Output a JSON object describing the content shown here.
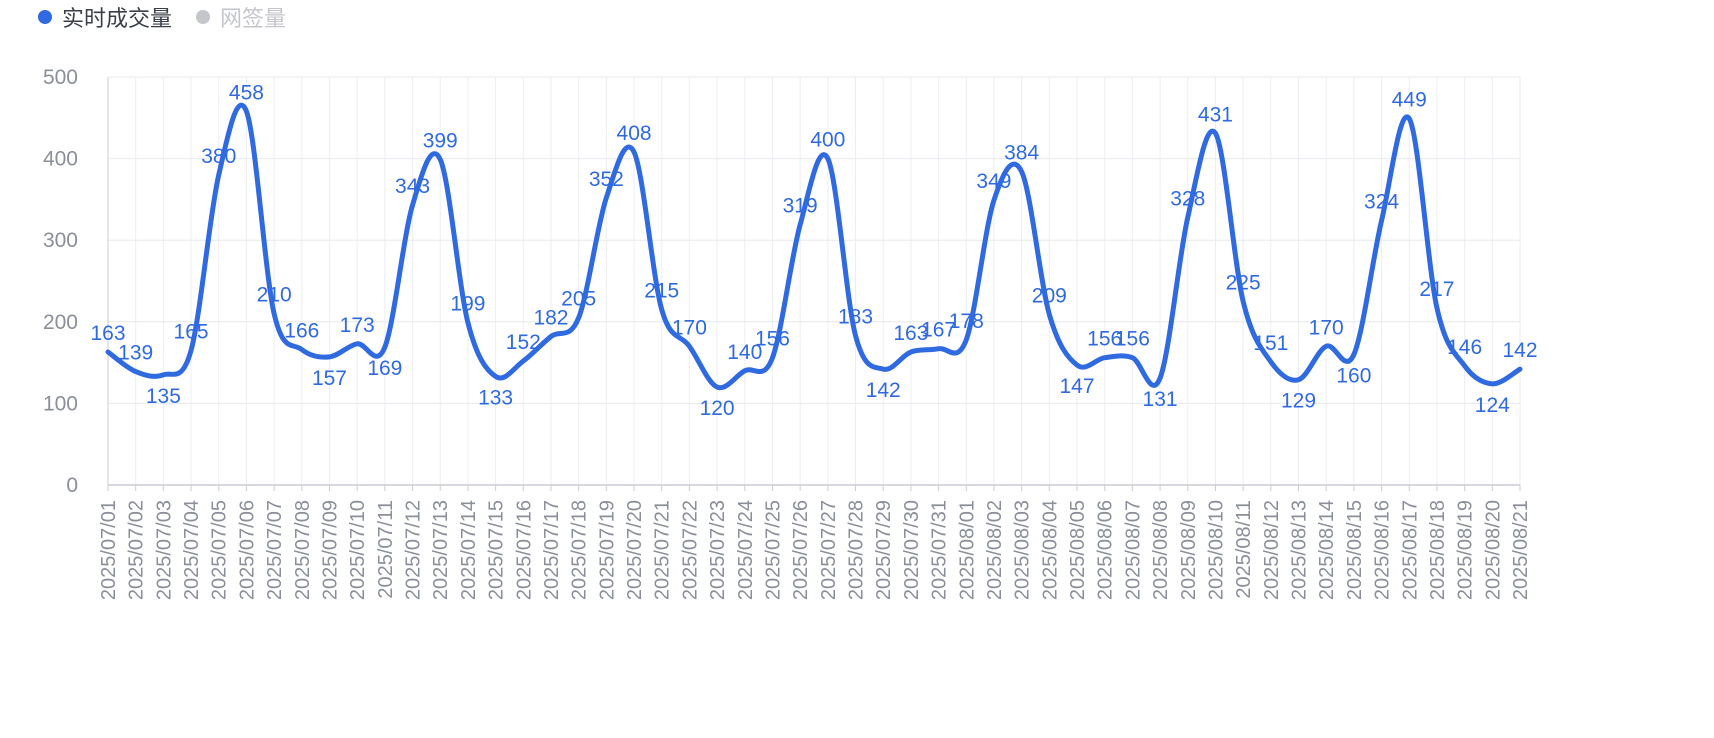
{
  "legend": [
    {
      "label": "实时成交量",
      "color": "#2f6ae0",
      "active": true
    },
    {
      "label": "网签量",
      "color": "#c4c6cc",
      "active": false
    }
  ],
  "chart_data": {
    "type": "line",
    "title": "",
    "xlabel": "",
    "ylabel": "",
    "ylim": [
      0,
      500
    ],
    "yticks": [
      0,
      100,
      200,
      300,
      400,
      500
    ],
    "grid": true,
    "legend_position": "top-left",
    "x": [
      "2025/07/01",
      "2025/07/02",
      "2025/07/03",
      "2025/07/04",
      "2025/07/05",
      "2025/07/06",
      "2025/07/07",
      "2025/07/08",
      "2025/07/09",
      "2025/07/10",
      "2025/07/11",
      "2025/07/12",
      "2025/07/13",
      "2025/07/14",
      "2025/07/15",
      "2025/07/16",
      "2025/07/17",
      "2025/07/18",
      "2025/07/19",
      "2025/07/20",
      "2025/07/21",
      "2025/07/22",
      "2025/07/23",
      "2025/07/24",
      "2025/07/25",
      "2025/07/26",
      "2025/07/27",
      "2025/07/28",
      "2025/07/29",
      "2025/07/30",
      "2025/07/31",
      "2025/08/01",
      "2025/08/02",
      "2025/08/03",
      "2025/08/04",
      "2025/08/05",
      "2025/08/06",
      "2025/08/07",
      "2025/08/08",
      "2025/08/09",
      "2025/08/10",
      "2025/08/11",
      "2025/08/12",
      "2025/08/13",
      "2025/08/14",
      "2025/08/15",
      "2025/08/16",
      "2025/08/17",
      "2025/08/18",
      "2025/08/19",
      "2025/08/20",
      "2025/08/21"
    ],
    "series": [
      {
        "name": "实时成交量",
        "color": "#2f6ae0",
        "values": [
          163,
          139,
          135,
          165,
          380,
          458,
          210,
          166,
          157,
          173,
          169,
          343,
          399,
          199,
          133,
          152,
          182,
          205,
          352,
          408,
          215,
          170,
          120,
          140,
          156,
          319,
          400,
          183,
          142,
          163,
          167,
          178,
          349,
          384,
          209,
          147,
          156,
          156,
          131,
          328,
          431,
          225,
          151,
          129,
          170,
          160,
          324,
          449,
          217,
          146,
          124,
          142
        ]
      }
    ]
  }
}
